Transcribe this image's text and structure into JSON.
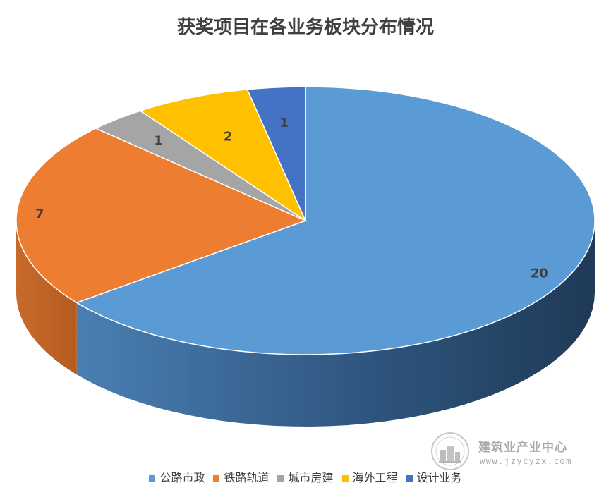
{
  "chart_data": {
    "type": "pie",
    "title": "获奖项目在各业务板块分布情况",
    "categories": [
      "公路市政",
      "铁路轨道",
      "城市房建",
      "海外工程",
      "设计业务"
    ],
    "values": [
      20,
      7,
      1,
      2,
      1
    ],
    "colors": [
      "#5b9bd5",
      "#ed7d31",
      "#a5a5a5",
      "#ffc000",
      "#4472c4"
    ],
    "legend_position": "bottom",
    "style": "3d"
  },
  "watermark": {
    "name": "建筑业产业中心",
    "url": "www.jzycyzx.com",
    "icon": "building-logo-icon",
    "seal_text": "建筑业产业中心"
  }
}
